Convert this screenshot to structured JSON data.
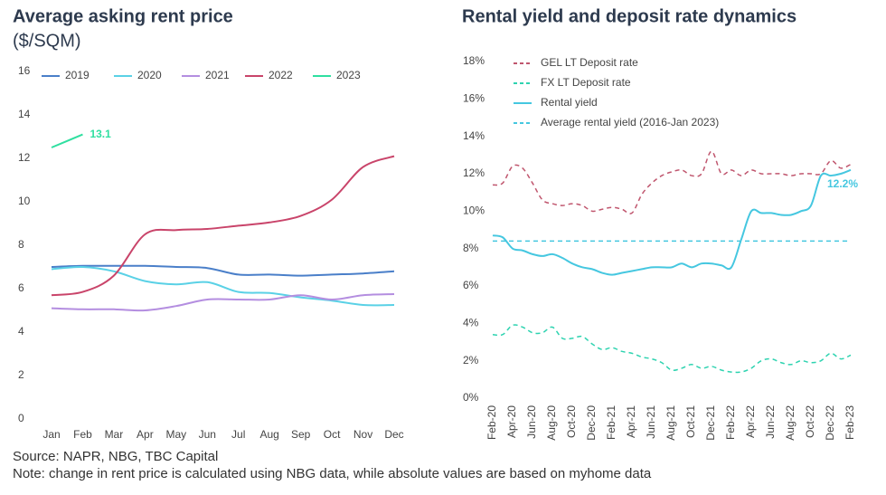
{
  "chart_data": [
    {
      "type": "line",
      "title": "Average asking rent price",
      "subtitle": "($/SQM)",
      "categories": [
        "Jan",
        "Feb",
        "Mar",
        "Apr",
        "May",
        "Jun",
        "Jul",
        "Aug",
        "Sep",
        "Oct",
        "Nov",
        "Dec"
      ],
      "ylim": [
        0,
        16
      ],
      "yticks": [
        0,
        2,
        4,
        6,
        8,
        10,
        12,
        14,
        16
      ],
      "legend": "top",
      "series": [
        {
          "name": "2019",
          "color": "#4a7fc9",
          "values": [
            7.0,
            7.05,
            7.05,
            7.05,
            7.0,
            6.95,
            6.65,
            6.65,
            6.6,
            6.65,
            6.7,
            6.8
          ]
        },
        {
          "name": "2020",
          "color": "#5ad1e6",
          "values": [
            6.9,
            7.0,
            6.8,
            6.35,
            6.2,
            6.3,
            5.85,
            5.8,
            5.6,
            5.45,
            5.25,
            5.25
          ]
        },
        {
          "name": "2021",
          "color": "#b48ee0",
          "values": [
            5.1,
            5.05,
            5.05,
            5.0,
            5.2,
            5.5,
            5.5,
            5.5,
            5.7,
            5.5,
            5.7,
            5.75
          ]
        },
        {
          "name": "2022",
          "color": "#c9446a",
          "values": [
            5.7,
            5.85,
            6.6,
            8.5,
            8.7,
            8.75,
            8.9,
            9.05,
            9.35,
            10.1,
            11.6,
            12.1
          ]
        },
        {
          "name": "2023",
          "color": "#2fdfa0",
          "values": [
            12.5,
            13.1,
            null,
            null,
            null,
            null,
            null,
            null,
            null,
            null,
            null,
            null
          ],
          "value_labels": [
            null,
            "13.1",
            null,
            null,
            null,
            null,
            null,
            null,
            null,
            null,
            null,
            null
          ]
        }
      ]
    },
    {
      "type": "line",
      "title": "Rental yield and deposit rate dynamics",
      "categories": [
        "Feb-20",
        null,
        "Apr-20",
        null,
        "Jun-20",
        null,
        "Aug-20",
        null,
        "Oct-20",
        null,
        "Dec-20",
        null,
        "Feb-21",
        null,
        "Apr-21",
        null,
        "Jun-21",
        null,
        "Aug-21",
        null,
        "Oct-21",
        null,
        "Dec-21",
        null,
        "Feb-22",
        null,
        "Apr-22",
        null,
        "Jun-22",
        null,
        "Aug-22",
        null,
        "Oct-22",
        null,
        "Dec-22",
        null,
        "Feb-23"
      ],
      "ylim": [
        0,
        18
      ],
      "yticks": [
        {
          "value": 0,
          "label": "0%"
        },
        {
          "value": 2,
          "label": "2%"
        },
        {
          "value": 4,
          "label": "4%"
        },
        {
          "value": 6,
          "label": "6%"
        },
        {
          "value": 8,
          "label": "8%"
        },
        {
          "value": 10,
          "label": "10%"
        },
        {
          "value": 12,
          "label": "12%"
        },
        {
          "value": 14,
          "label": "14%"
        },
        {
          "value": 16,
          "label": "16%"
        },
        {
          "value": 18,
          "label": "18%"
        }
      ],
      "legend": "upper left",
      "series": [
        {
          "name": "GEL LT Deposit rate",
          "color": "#c0566e",
          "dash": true,
          "values": [
            11.4,
            11.5,
            12.4,
            12.3,
            11.5,
            10.6,
            10.4,
            10.3,
            10.4,
            10.3,
            10.0,
            10.1,
            10.2,
            10.1,
            9.9,
            10.9,
            11.5,
            11.9,
            12.1,
            12.2,
            11.9,
            12.0,
            13.2,
            12.0,
            12.2,
            11.9,
            12.2,
            12.0,
            12.0,
            12.0,
            11.9,
            12.0,
            12.0,
            12.0,
            12.7,
            12.3,
            12.5
          ]
        },
        {
          "name": "FX LT Deposit rate",
          "color": "#2ed3b0",
          "dash": true,
          "values": [
            3.4,
            3.4,
            3.9,
            3.8,
            3.5,
            3.5,
            3.8,
            3.2,
            3.2,
            3.3,
            2.9,
            2.6,
            2.7,
            2.5,
            2.4,
            2.2,
            2.1,
            1.9,
            1.5,
            1.6,
            1.8,
            1.6,
            1.7,
            1.5,
            1.4,
            1.4,
            1.6,
            2.0,
            2.1,
            1.9,
            1.8,
            2.0,
            1.9,
            2.0,
            2.4,
            2.1,
            2.3
          ]
        },
        {
          "name": "Rental yield",
          "color": "#45c7e0",
          "dash": false,
          "values": [
            8.7,
            8.6,
            8.0,
            7.9,
            7.7,
            7.6,
            7.7,
            7.5,
            7.2,
            7.0,
            6.9,
            6.7,
            6.6,
            6.7,
            6.8,
            6.9,
            7.0,
            7.0,
            7.0,
            7.2,
            7.0,
            7.2,
            7.2,
            7.1,
            7.0,
            8.5,
            10.0,
            9.9,
            9.9,
            9.8,
            9.8,
            10.0,
            10.3,
            11.9,
            11.9,
            12.0,
            12.2
          ],
          "value_labels": [
            null,
            null,
            null,
            null,
            null,
            null,
            null,
            null,
            null,
            null,
            null,
            null,
            null,
            null,
            null,
            null,
            null,
            null,
            null,
            null,
            null,
            null,
            null,
            null,
            null,
            null,
            null,
            null,
            null,
            null,
            null,
            null,
            null,
            null,
            null,
            null,
            "12.2%"
          ]
        },
        {
          "name": "Average rental yield (2016-Jan 2023)",
          "color": "#45c7e0",
          "dash": true,
          "values": [
            8.4,
            8.4,
            8.4,
            8.4,
            8.4,
            8.4,
            8.4,
            8.4,
            8.4,
            8.4,
            8.4,
            8.4,
            8.4,
            8.4,
            8.4,
            8.4,
            8.4,
            8.4,
            8.4,
            8.4,
            8.4,
            8.4,
            8.4,
            8.4,
            8.4,
            8.4,
            8.4,
            8.4,
            8.4,
            8.4,
            8.4,
            8.4,
            8.4,
            8.4,
            8.4,
            8.4,
            8.4
          ]
        }
      ]
    }
  ],
  "source": "Source: NAPR, NBG, TBC Capital",
  "note": "Note: change in rent price is calculated using NBG data, while absolute values are based on myhome data"
}
